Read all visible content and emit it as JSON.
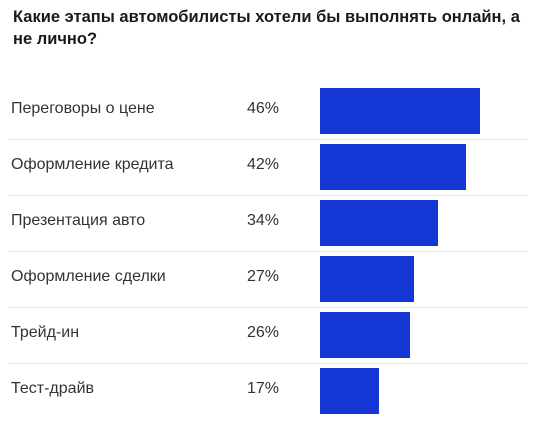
{
  "chart_data": {
    "type": "bar",
    "orientation": "horizontal",
    "title": "Какие этапы автомобилисты хотели бы выполнять онлайн, а не лично?",
    "categories": [
      "Переговоры о цене",
      "Оформление кредита",
      "Презентация авто",
      "Оформление сделки",
      "Трейд-ин",
      "Тест-драйв"
    ],
    "values": [
      46,
      42,
      34,
      27,
      26,
      17
    ],
    "value_labels": [
      "46%",
      "42%",
      "34%",
      "27%",
      "26%",
      "17%"
    ],
    "unit": "%",
    "xlim": [
      0,
      46
    ],
    "bar_color": "#1537d6",
    "grid": false,
    "legend": "none"
  }
}
